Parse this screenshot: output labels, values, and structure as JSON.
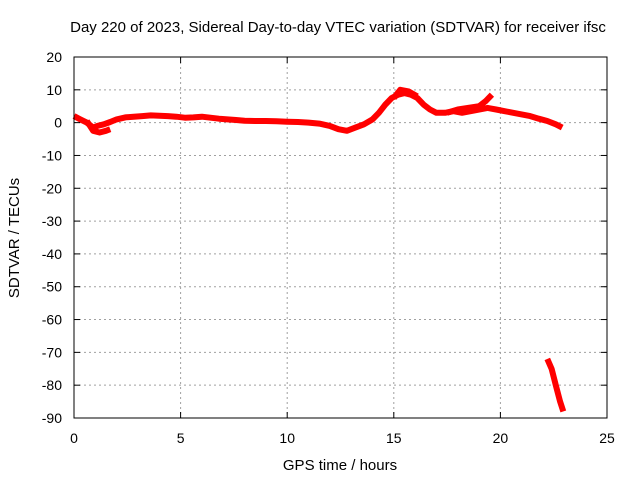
{
  "chart_data": {
    "type": "line",
    "title": "Day 220 of 2023, Sidereal Day-to-day VTEC variation (SDTVAR) for receiver ifsc",
    "xlabel": "GPS time / hours",
    "ylabel": "SDTVAR / TECUs",
    "xlim": [
      0,
      25
    ],
    "ylim": [
      -90,
      20
    ],
    "xticks": [
      0,
      5,
      10,
      15,
      20,
      25
    ],
    "yticks": [
      20,
      10,
      0,
      -10,
      -20,
      -30,
      -40,
      -50,
      -60,
      -70,
      -80,
      -90
    ],
    "grid": true,
    "legend": "none",
    "color": "#ff0000",
    "series": [
      {
        "values": [
          [
            0.0,
            2.0
          ],
          [
            0.3,
            1.0
          ],
          [
            0.6,
            0.0
          ],
          [
            0.9,
            -1.5
          ],
          [
            1.1,
            -1.0
          ],
          [
            1.4,
            -0.5
          ],
          [
            1.7,
            0.2
          ],
          [
            2.0,
            1.0
          ],
          [
            2.4,
            1.6
          ],
          [
            2.8,
            1.8
          ],
          [
            3.2,
            2.0
          ],
          [
            3.6,
            2.2
          ],
          [
            4.0,
            2.1
          ],
          [
            4.4,
            2.0
          ],
          [
            4.8,
            1.8
          ],
          [
            5.2,
            1.5
          ],
          [
            5.6,
            1.6
          ],
          [
            6.0,
            1.8
          ],
          [
            6.4,
            1.5
          ],
          [
            6.8,
            1.2
          ],
          [
            7.2,
            1.0
          ],
          [
            7.6,
            0.8
          ],
          [
            8.0,
            0.6
          ],
          [
            8.5,
            0.5
          ],
          [
            9.0,
            0.5
          ],
          [
            9.5,
            0.4
          ],
          [
            10.0,
            0.3
          ],
          [
            10.5,
            0.2
          ],
          [
            11.0,
            0.0
          ],
          [
            11.5,
            -0.3
          ],
          [
            12.0,
            -1.0
          ],
          [
            12.4,
            -2.0
          ],
          [
            12.8,
            -2.5
          ],
          [
            13.2,
            -1.5
          ],
          [
            13.6,
            -0.5
          ],
          [
            14.0,
            1.0
          ],
          [
            14.3,
            3.0
          ],
          [
            14.6,
            5.5
          ],
          [
            14.9,
            7.5
          ],
          [
            15.2,
            8.5
          ],
          [
            15.5,
            9.0
          ],
          [
            15.8,
            8.5
          ],
          [
            16.1,
            7.5
          ],
          [
            16.4,
            5.5
          ],
          [
            16.7,
            4.0
          ],
          [
            17.0,
            3.0
          ],
          [
            17.4,
            3.0
          ],
          [
            17.8,
            3.5
          ],
          [
            18.2,
            3.0
          ],
          [
            18.6,
            3.5
          ],
          [
            19.0,
            4.0
          ],
          [
            19.4,
            4.5
          ],
          [
            19.8,
            4.0
          ],
          [
            20.2,
            3.5
          ],
          [
            20.6,
            3.0
          ],
          [
            21.0,
            2.5
          ],
          [
            21.4,
            2.0
          ],
          [
            21.8,
            1.2
          ],
          [
            22.2,
            0.5
          ],
          [
            22.6,
            -0.5
          ],
          [
            22.9,
            -1.5
          ]
        ]
      },
      {
        "values": [
          [
            15.0,
            7.5
          ],
          [
            15.3,
            10.0
          ],
          [
            15.7,
            9.5
          ],
          [
            16.1,
            8.0
          ]
        ]
      },
      {
        "values": [
          [
            17.5,
            3.0
          ],
          [
            18.0,
            4.0
          ],
          [
            18.5,
            4.5
          ],
          [
            19.0,
            5.0
          ],
          [
            19.3,
            6.5
          ],
          [
            19.6,
            8.5
          ]
        ]
      },
      {
        "values": [
          [
            0.6,
            0.5
          ],
          [
            0.9,
            -2.5
          ],
          [
            1.2,
            -3.0
          ],
          [
            1.5,
            -2.5
          ],
          [
            1.7,
            -2.0
          ]
        ]
      },
      {
        "values": [
          [
            22.2,
            -72.0
          ],
          [
            22.4,
            -75.0
          ],
          [
            22.6,
            -80.0
          ],
          [
            22.8,
            -85.0
          ],
          [
            22.95,
            -88.0
          ]
        ]
      }
    ]
  }
}
